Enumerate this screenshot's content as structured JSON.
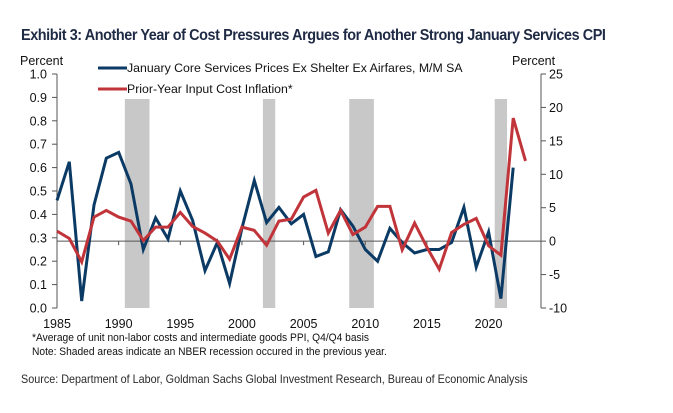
{
  "chart_data": {
    "type": "line",
    "title": "Exhibit 3: Another Year of Cost Pressures Argues for Another Strong January Services CPI",
    "left_axis": {
      "label": "Percent",
      "range": [
        0.0,
        1.0
      ],
      "ticks": [
        "0.0",
        "0.1",
        "0.2",
        "0.3",
        "0.4",
        "0.5",
        "0.6",
        "0.7",
        "0.8",
        "0.9",
        "1.0"
      ]
    },
    "right_axis": {
      "label": "Percent",
      "range": [
        -10,
        25
      ],
      "ticks": [
        "-10",
        "-5",
        "0",
        "5",
        "10",
        "15",
        "20",
        "25"
      ]
    },
    "x_axis": {
      "range": [
        1985,
        2024
      ],
      "ticks": [
        "1985",
        "1990",
        "1995",
        "2000",
        "2005",
        "2010",
        "2015",
        "2020"
      ]
    },
    "legend_position": "top-left",
    "recessions": [
      [
        1990.5,
        1992.5
      ],
      [
        2001.7,
        2002.7
      ],
      [
        2008.7,
        2010.7
      ],
      [
        2020.5,
        2021.5
      ]
    ],
    "series": [
      {
        "name": "January Core Services Prices Ex Shelter Ex Airfares, M/M SA",
        "axis": "left",
        "color": "#0b3a64",
        "x": [
          1985,
          1986,
          1987,
          1988,
          1989,
          1990,
          1991,
          1992,
          1993,
          1994,
          1995,
          1996,
          1997,
          1998,
          1999,
          2000,
          2001,
          2002,
          2003,
          2004,
          2005,
          2006,
          2007,
          2008,
          2009,
          2010,
          2011,
          2012,
          2013,
          2014,
          2015,
          2016,
          2017,
          2018,
          2019,
          2020,
          2021,
          2022
        ],
        "values": [
          0.46,
          0.625,
          0.03,
          0.44,
          0.64,
          0.665,
          0.53,
          0.25,
          0.385,
          0.295,
          0.5,
          0.375,
          0.16,
          0.28,
          0.105,
          0.34,
          0.545,
          0.365,
          0.43,
          0.36,
          0.4,
          0.22,
          0.24,
          0.42,
          0.35,
          0.25,
          0.2,
          0.34,
          0.28,
          0.235,
          0.25,
          0.25,
          0.28,
          0.43,
          0.175,
          0.325,
          0.04,
          0.6
        ]
      },
      {
        "name": "Prior-Year Input Cost Inflation*",
        "axis": "right",
        "color": "#c0343a",
        "x": [
          1985,
          1986,
          1987,
          1988,
          1989,
          1990,
          1991,
          1992,
          1993,
          1994,
          1995,
          1996,
          1997,
          1998,
          1999,
          2000,
          2001,
          2002,
          2003,
          2004,
          2005,
          2006,
          2007,
          2008,
          2009,
          2010,
          2011,
          2012,
          2013,
          2014,
          2015,
          2016,
          2017,
          2018,
          2019,
          2020,
          2021,
          2022,
          2023
        ],
        "values": [
          1.5,
          0.4,
          -3.1,
          3.6,
          4.6,
          3.6,
          3.0,
          0.1,
          2.1,
          2.1,
          4.3,
          2.2,
          1.2,
          0.0,
          -2.7,
          2.1,
          1.6,
          -0.6,
          3.0,
          3.3,
          6.6,
          7.6,
          1.2,
          4.6,
          1.0,
          2.1,
          5.2,
          5.2,
          -1.3,
          2.7,
          -0.9,
          -4.2,
          1.3,
          2.5,
          3.4,
          -0.7,
          -2.1,
          18.4,
          12.0
        ]
      }
    ]
  },
  "footnotes": {
    "asterisk": "*Average of unit non-labor costs and intermediate goods PPI, Q4/Q4 basis",
    "note": "Note: Shaded areas indicate an NBER recession occured in the previous year."
  },
  "source": "Source: Department of Labor, Goldman Sachs Global Investment Research, Bureau of Economic Analysis"
}
